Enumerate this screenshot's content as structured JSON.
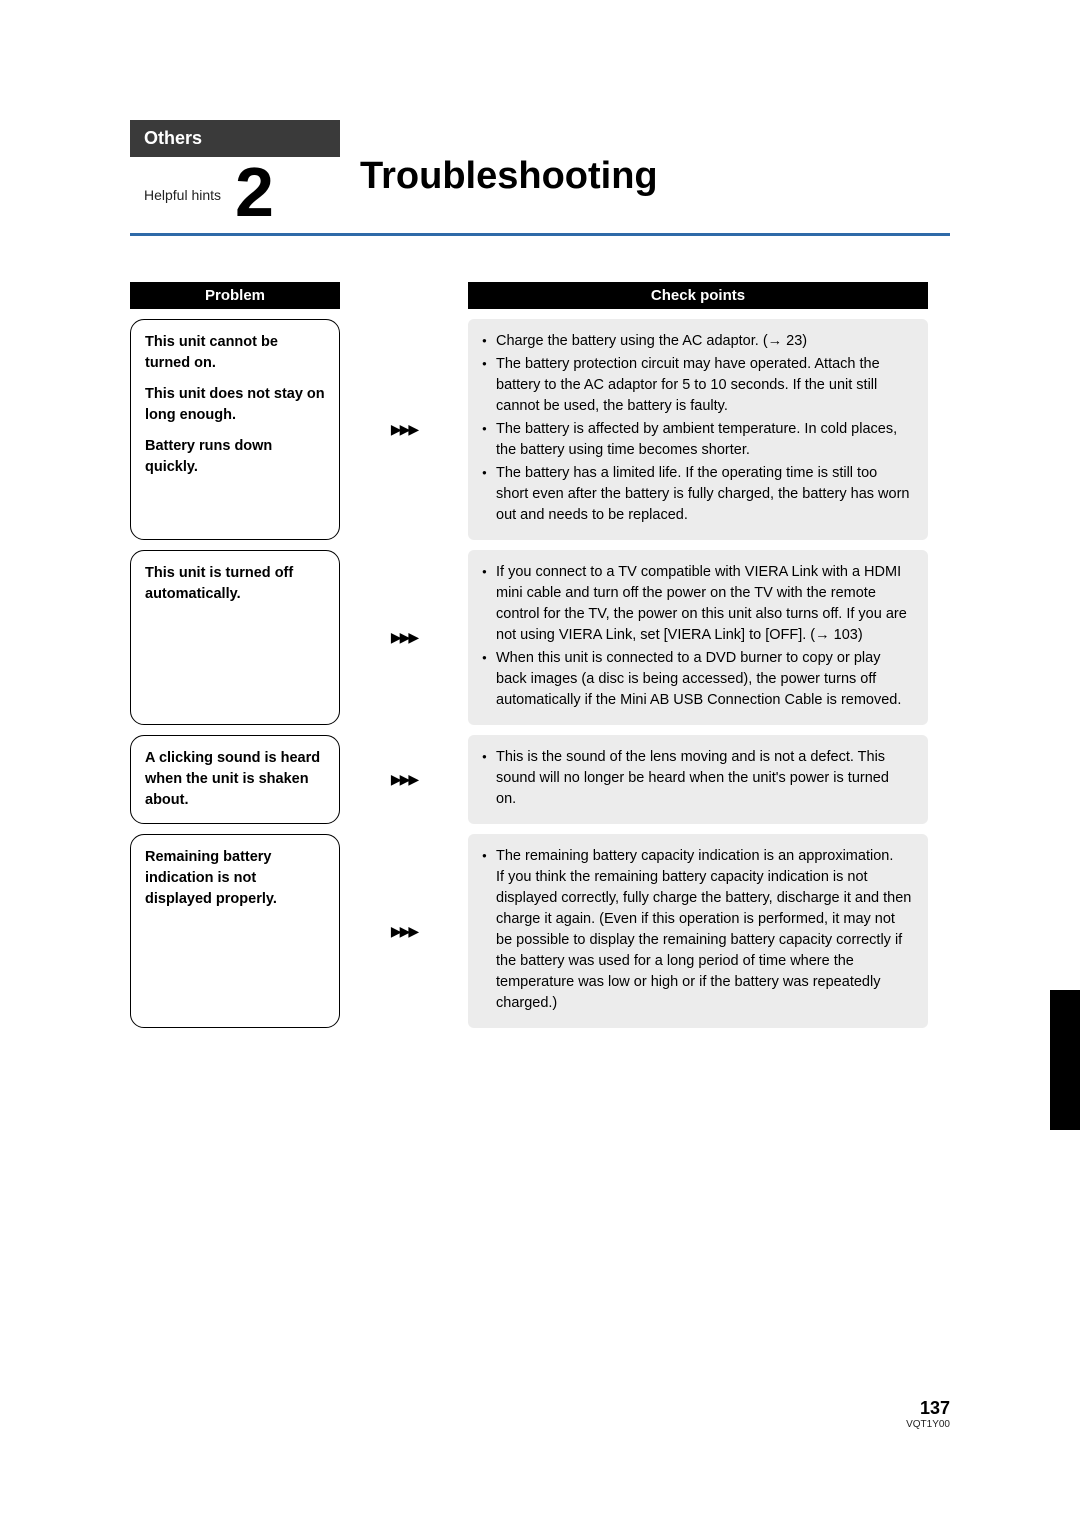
{
  "header": {
    "category": "Others",
    "hint_label": "Helpful hints",
    "chapter_number": "2",
    "title": "Troubleshooting",
    "accent_color": "#2e6aa8",
    "category_bg": "#3a3a3a"
  },
  "columns": {
    "problem": "Problem",
    "check": "Check points"
  },
  "arrow": "▶▶▶",
  "rows": [
    {
      "problem_parts": [
        "This unit cannot be turned on.",
        "This unit does not stay on long enough.",
        "Battery runs down quickly."
      ],
      "checks": [
        "Charge the battery using the AC adaptor. (→ 23)",
        "The battery protection circuit may have operated. Attach the battery to the AC adaptor for 5 to 10 seconds. If the unit still cannot be used, the battery is faulty.",
        "The battery is affected by ambient temperature. In cold places, the battery using time becomes shorter.",
        "The battery has a limited life. If the operating time is still too short even after the battery is fully charged, the battery has worn out and needs to be replaced."
      ]
    },
    {
      "problem_parts": [
        "This unit is turned off automatically."
      ],
      "checks": [
        "If you connect to a TV compatible with VIERA Link with a HDMI mini cable and turn off the power on the TV with the remote control for the TV, the power on this unit also turns off. If you are not using VIERA Link, set [VIERA Link] to [OFF]. (→ 103)",
        "When this unit is connected to a DVD burner to copy or play back images (a disc is being accessed), the power turns off automatically if the Mini AB USB Connection Cable is removed."
      ]
    },
    {
      "problem_parts": [
        "A clicking sound is heard when the unit is shaken about."
      ],
      "checks": [
        "This is the sound of the lens moving and is not a defect. This sound will no longer be heard when the unit's power is turned on."
      ]
    },
    {
      "problem_parts": [
        "Remaining battery indication is not displayed properly."
      ],
      "checks": [
        "The remaining battery capacity indication is an approximation.\nIf you think the remaining battery capacity indication is not displayed correctly, fully charge the battery, discharge it and then charge it again. (Even if this operation is performed, it may not be possible to display the remaining battery capacity correctly if the battery was used for a long period of time where the temperature was low or high or if the battery was repeatedly charged.)"
      ]
    }
  ],
  "footer": {
    "page": "137",
    "doc_id": "VQT1Y00"
  }
}
